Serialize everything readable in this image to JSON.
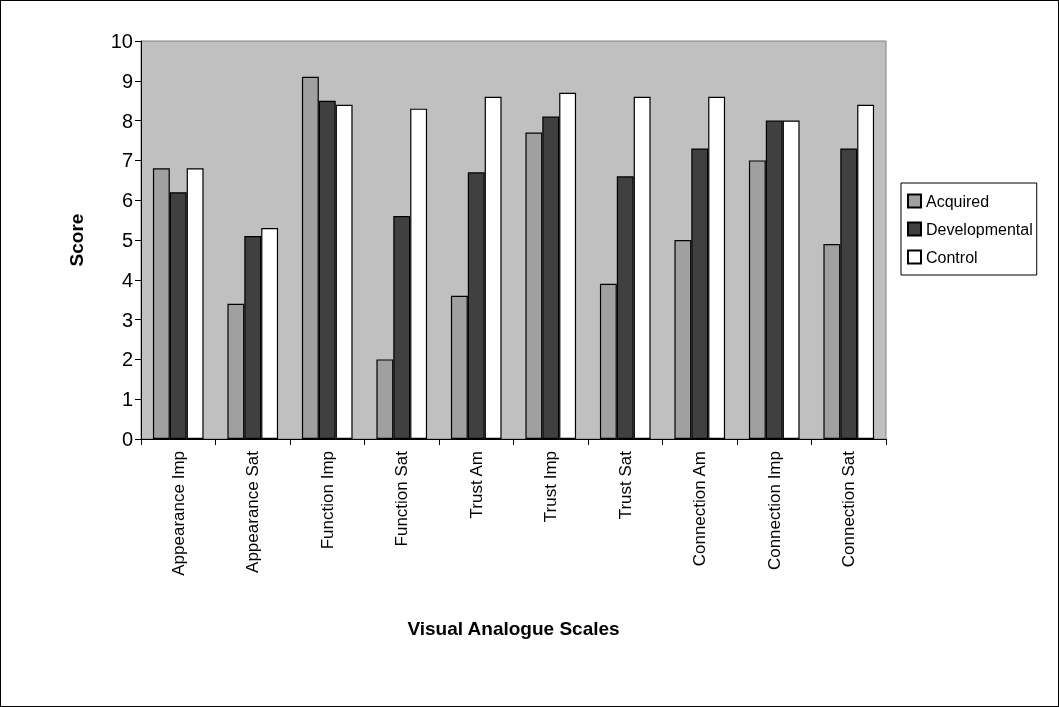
{
  "chart_data": {
    "type": "bar",
    "xlabel": "Visual Analogue Scales",
    "ylabel": "Score",
    "categories": [
      "Appearance Imp",
      "Appearance Sat",
      "Function Imp",
      "Function Sat",
      "Trust Am",
      "Trust Imp",
      "Trust Sat",
      "Connection Am",
      "Connection Imp",
      "Connection Sat"
    ],
    "series": [
      {
        "name": "Acquired",
        "color": "#a0a0a0",
        "values": [
          6.8,
          3.4,
          9.1,
          2.0,
          3.6,
          7.7,
          3.9,
          5.0,
          7.0,
          4.9
        ]
      },
      {
        "name": "Developmental",
        "color": "#404040",
        "values": [
          6.2,
          5.1,
          8.5,
          5.6,
          6.7,
          8.1,
          6.6,
          7.3,
          8.0,
          7.3
        ]
      },
      {
        "name": "Control",
        "color": "#ffffff",
        "values": [
          6.8,
          5.3,
          8.4,
          8.3,
          8.6,
          8.7,
          8.6,
          8.6,
          8.0,
          8.4
        ]
      }
    ],
    "ylim": [
      0,
      10
    ],
    "yticks": [
      0,
      1,
      2,
      3,
      4,
      5,
      6,
      7,
      8,
      9,
      10
    ],
    "grid": false,
    "legend": "right"
  }
}
